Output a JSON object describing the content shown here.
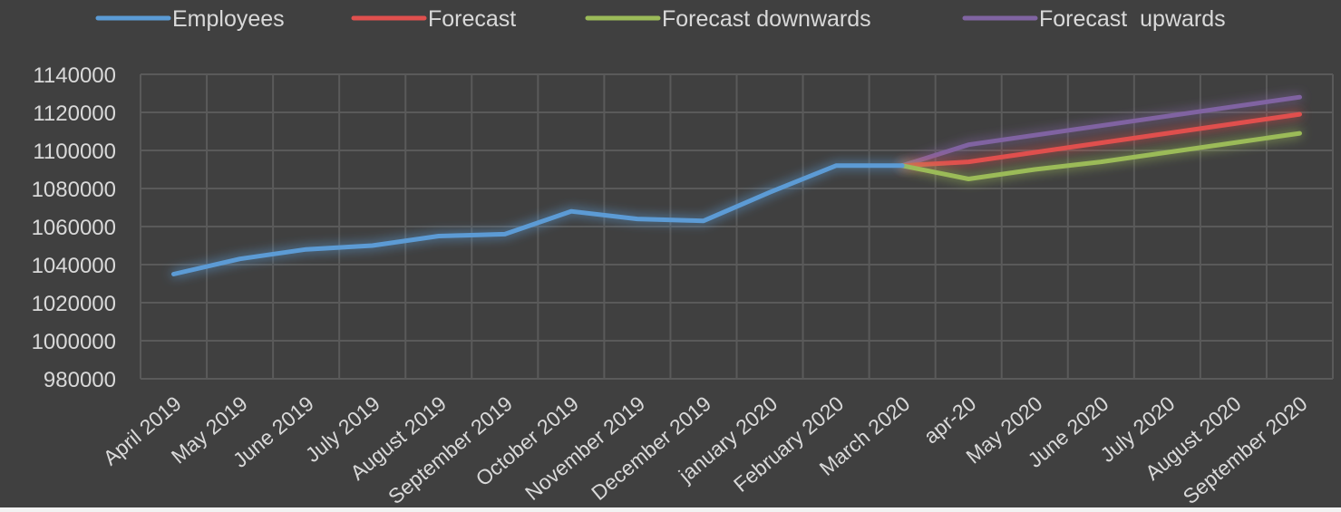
{
  "chart_data": {
    "type": "line",
    "categories": [
      "April 2019",
      "May 2019",
      "June 2019",
      "July 2019",
      "August 2019",
      "September 2019",
      "October 2019",
      "November 2019",
      "December 2019",
      "january 2020",
      "February 2020",
      "March 2020",
      "apr-20",
      "May 2020",
      "June 2020",
      "July 2020",
      "August 2020",
      "September 2020"
    ],
    "series": [
      {
        "name": "Employees",
        "color": "#5b9bd5",
        "values": [
          1035000,
          1043000,
          1048000,
          1050000,
          1055000,
          1056000,
          1068000,
          1064000,
          1063000,
          1078000,
          1092000,
          1092000,
          null,
          null,
          null,
          null,
          null,
          null
        ]
      },
      {
        "name": "Forecast",
        "color": "#e0504e",
        "values": [
          null,
          null,
          null,
          null,
          null,
          null,
          null,
          null,
          null,
          null,
          null,
          1092000,
          1094000,
          1099000,
          1104000,
          1109000,
          1114000,
          1119000
        ]
      },
      {
        "name": "Forecast downwards",
        "color": "#9bbb59",
        "values": [
          null,
          null,
          null,
          null,
          null,
          null,
          null,
          null,
          null,
          null,
          null,
          1092000,
          1085000,
          1090000,
          1094000,
          1099000,
          1104000,
          1109000
        ]
      },
      {
        "name": "Forecast  upwards",
        "color": "#8064a2",
        "values": [
          null,
          null,
          null,
          null,
          null,
          null,
          null,
          null,
          null,
          null,
          null,
          1092000,
          1103000,
          1108000,
          1113000,
          1118000,
          1123000,
          1128000
        ]
      }
    ],
    "ylim": [
      980000,
      1140000
    ],
    "yticks": [
      "1140000",
      "1120000",
      "1100000",
      "1080000",
      "1060000",
      "1040000",
      "1020000",
      "1000000",
      "980000"
    ],
    "legend_position": "top",
    "grid": true
  }
}
